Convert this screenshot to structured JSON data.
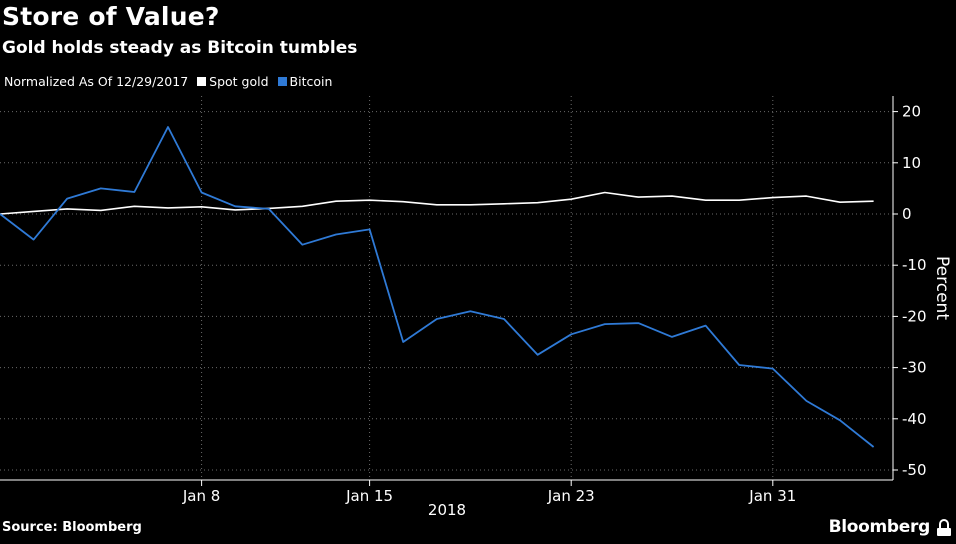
{
  "header": {
    "title": "Store of Value?",
    "subtitle": "Gold holds steady as Bitcoin tumbles"
  },
  "legend": {
    "note": "Normalized As Of 12/29/2017",
    "items": [
      {
        "label": "Spot gold",
        "color": "#ffffff"
      },
      {
        "label": "Bitcoin",
        "color": "#2f7ad6"
      }
    ]
  },
  "footer": {
    "source": "Source: Bloomberg",
    "brand": "Bloomberg",
    "brand_icon": "bloomberg-terminal-icon"
  },
  "chart_data": {
    "type": "line",
    "ylabel": "Percent",
    "year_label": "2018",
    "ylim": [
      -50,
      20
    ],
    "y_ticks": [
      20,
      10,
      0,
      -10,
      -20,
      -30,
      -40,
      -50
    ],
    "x_ticks": [
      {
        "label": "Jan 8",
        "index": 6
      },
      {
        "label": "Jan 15",
        "index": 11
      },
      {
        "label": "Jan 23",
        "index": 17
      },
      {
        "label": "Jan 31",
        "index": 23
      }
    ],
    "grid": true,
    "series": [
      {
        "name": "Spot gold",
        "color": "#ffffff",
        "values": [
          0,
          0.5,
          1.0,
          0.7,
          1.5,
          1.2,
          1.4,
          0.8,
          1.1,
          1.5,
          2.5,
          2.7,
          2.4,
          1.8,
          1.8,
          2.0,
          2.2,
          2.9,
          4.2,
          3.3,
          3.5,
          2.7,
          2.7,
          3.2,
          3.5,
          2.3,
          2.5
        ]
      },
      {
        "name": "Bitcoin",
        "color": "#2f7ad6",
        "values": [
          0,
          -5,
          3,
          5,
          4.3,
          17,
          4.2,
          1.5,
          1.0,
          -6,
          -4,
          -3,
          -25,
          -20.5,
          -19,
          -20.5,
          -27.5,
          -23.5,
          -21.5,
          -21.3,
          -24,
          -21.8,
          -29.5,
          -30.2,
          -36.5,
          -40.3,
          -45.5
        ]
      }
    ]
  }
}
